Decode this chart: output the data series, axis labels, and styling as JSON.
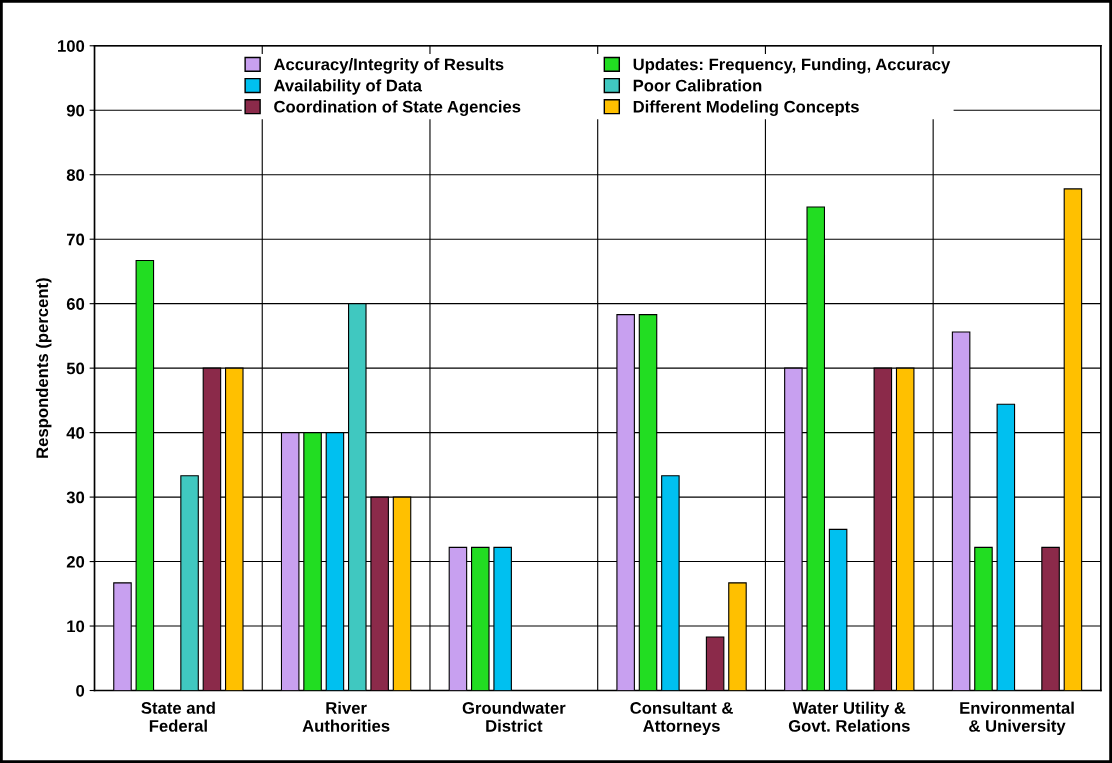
{
  "chart_data": {
    "type": "bar",
    "ylabel": "Respondents (percent)",
    "categories": [
      "State and\nFederal",
      "River\nAuthorities",
      "Groundwater\nDistrict",
      "Consultant &\nAttorneys",
      "Water Utility &\nGovt. Relations",
      "Environmental\n& University"
    ],
    "series": [
      {
        "name": "Accuracy/Integrity of Results",
        "color": "#c8a0f0",
        "values": [
          16.7,
          40,
          22.2,
          58.3,
          50,
          55.6
        ]
      },
      {
        "name": "Updates: Frequency, Funding, Accuracy",
        "color": "#22dd22",
        "values": [
          66.7,
          40,
          22.2,
          58.3,
          75,
          22.2
        ]
      },
      {
        "name": "Availability of Data",
        "color": "#00c0f0",
        "values": [
          null,
          40,
          22.2,
          33.3,
          25,
          44.4
        ]
      },
      {
        "name": "Poor Calibration",
        "color": "#40c8c0",
        "values": [
          33.3,
          60,
          null,
          null,
          null,
          null
        ]
      },
      {
        "name": "Coordination of State Agencies",
        "color": "#8b2a4a",
        "values": [
          50,
          30,
          null,
          8.3,
          50,
          22.2
        ]
      },
      {
        "name": "Different Modeling Concepts",
        "color": "#ffc000",
        "values": [
          50,
          30,
          null,
          16.7,
          50,
          77.8
        ]
      }
    ],
    "ylim": [
      0,
      100
    ],
    "yticks": [
      0,
      10,
      20,
      30,
      40,
      50,
      60,
      70,
      80,
      90,
      100
    ],
    "grid": true,
    "legend": "top"
  }
}
